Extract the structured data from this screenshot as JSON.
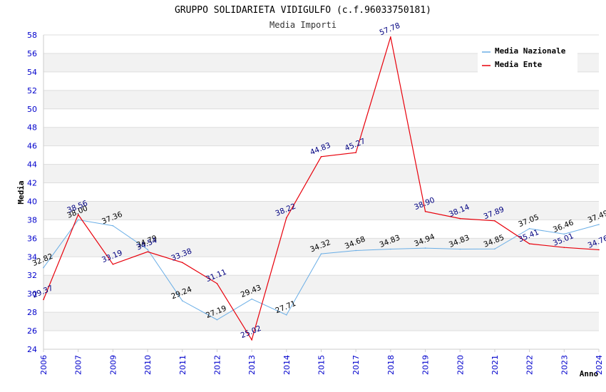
{
  "chart_data": {
    "type": "line",
    "title": "GRUPPO SOLIDARIETA VIDIGULFO (c.f.96033750181)",
    "subtitle": "Media Importi",
    "ylabel": "Media",
    "xlabel": "Anno",
    "ylim": [
      24,
      58
    ],
    "yticks": [
      24,
      26,
      28,
      30,
      32,
      34,
      36,
      38,
      40,
      42,
      44,
      46,
      48,
      50,
      52,
      54,
      56,
      58
    ],
    "categories": [
      "2006",
      "2007",
      "2009",
      "2010",
      "2011",
      "2012",
      "2013",
      "2014",
      "2015",
      "2017",
      "2018",
      "2019",
      "2020",
      "2021",
      "2022",
      "2023",
      "2024"
    ],
    "series": [
      {
        "name": "Media Nazionale",
        "color": "#6aaee6",
        "label_color": "#000000",
        "values": [
          32.82,
          38.0,
          37.36,
          34.79,
          29.24,
          27.19,
          29.43,
          27.71,
          34.32,
          34.68,
          34.83,
          34.94,
          34.83,
          34.85,
          37.05,
          36.46,
          37.49
        ],
        "labels": [
          "32.82",
          "38.00",
          "37.36",
          "34.79",
          "29.24",
          "27.19",
          "29.43",
          "27.71",
          "34.32",
          "34.68",
          "34.83",
          "34.94",
          "34.83",
          "34.85",
          "37.05",
          "36.46",
          "37.49"
        ]
      },
      {
        "name": "Media Ente",
        "color": "#e8000b",
        "label_color": "#000080",
        "values": [
          29.37,
          38.56,
          33.19,
          34.54,
          33.38,
          31.11,
          25.02,
          38.22,
          44.83,
          45.27,
          57.78,
          38.9,
          38.14,
          37.89,
          35.41,
          35.01,
          34.76
        ],
        "labels": [
          "29.37",
          "38.56",
          "33.19",
          "34.54",
          "33.38",
          "31.11",
          "25.02",
          "38.22",
          "44.83",
          "45.27",
          "57.78",
          "38.90",
          "38.14",
          "37.89",
          "35.41",
          "35.01",
          "34.76"
        ]
      }
    ],
    "legend_position": "top-right",
    "grid": true
  }
}
